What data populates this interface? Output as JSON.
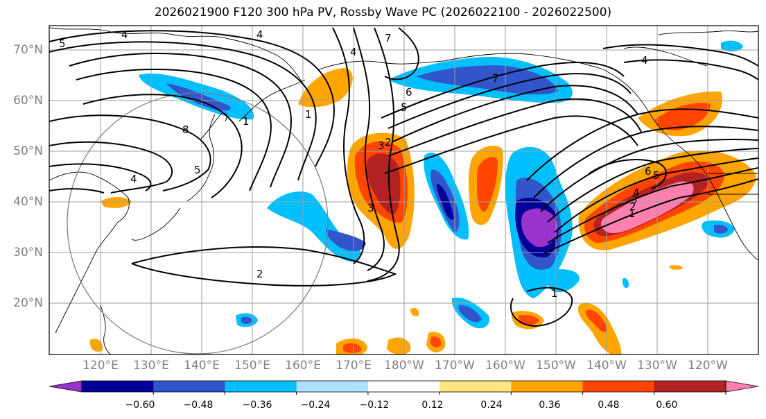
{
  "title": "2026021900 F120 300 hPa PV, Rossby Wave PC (2026022100 - 2026022500)",
  "lat_labels": [
    "70°N",
    "60°N",
    "50°N",
    "40°N",
    "30°N",
    "20°N"
  ],
  "lon_labels": [
    "120°E",
    "130°E",
    "140°E",
    "150°E",
    "160°E",
    "170°E",
    "180°W",
    "170°W",
    "160°W",
    "150°W",
    "140°W",
    "130°W",
    "120°W"
  ],
  "colorbar": {
    "colors": [
      "#9933cc",
      "#000099",
      "#3355cc",
      "#00bfff",
      "#b0e0ff",
      "#ffffff",
      "#ffe680",
      "#ffa500",
      "#ff4500",
      "#b22222",
      "#ff80b0"
    ],
    "ticks": [
      "−0.60",
      "−0.48",
      "−0.36",
      "−0.24",
      "−0.12",
      "0.12",
      "0.24",
      "0.36",
      "0.48",
      "0.60"
    ]
  },
  "contour_labels": [
    "5",
    "4",
    "4",
    "7",
    "6",
    "5",
    "4",
    "1",
    "8",
    "5",
    "4",
    "6",
    "5",
    "4",
    "3",
    "2",
    "1",
    "1",
    "2",
    "3",
    "4",
    "3",
    "2",
    "1",
    "7"
  ]
}
